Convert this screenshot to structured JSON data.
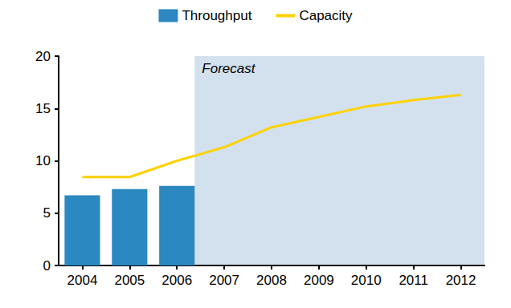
{
  "chart_data": {
    "type": "bar",
    "categories": [
      "2004",
      "2005",
      "2006",
      "2007",
      "2008",
      "2009",
      "2010",
      "2011",
      "2012"
    ],
    "series": [
      {
        "name": "Throughput",
        "type": "bar",
        "color": "#2b88c0",
        "values": [
          6.7,
          7.3,
          7.6,
          null,
          null,
          null,
          null,
          null,
          null
        ]
      },
      {
        "name": "Capacity",
        "type": "line",
        "color": "#ffd200",
        "values": [
          8.45,
          8.45,
          10.0,
          11.3,
          13.2,
          14.2,
          15.2,
          15.8,
          16.3
        ]
      }
    ],
    "ylim": [
      0,
      20
    ],
    "yticks": [
      0,
      5,
      10,
      15,
      20
    ],
    "grid": false,
    "legend": "top",
    "annotations": [
      {
        "text": "Forecast",
        "from": "2007"
      }
    ]
  }
}
